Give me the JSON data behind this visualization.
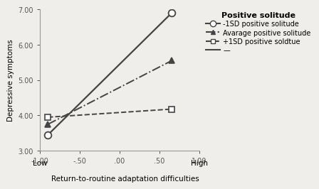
{
  "title": "Positive solitude",
  "xlabel": "Return-to-routine adaptation difficulties",
  "ylabel": "Depressive symptoms",
  "xlim": [
    -1.0,
    1.0
  ],
  "ylim": [
    3.0,
    7.0
  ],
  "xticks": [
    -1.0,
    -0.5,
    0.0,
    0.5,
    1.0
  ],
  "xtick_labels": [
    "-1.00",
    "-.50",
    ".00",
    ".50",
    "1.00"
  ],
  "yticks": [
    3.0,
    4.0,
    5.0,
    6.0,
    7.0
  ],
  "ytick_labels": [
    "3.00",
    "4.00",
    "5.00",
    "6.00",
    "7.00"
  ],
  "x_low_label": "Low",
  "x_high_label": "High",
  "line1": {
    "label": "-1SD positive solitude",
    "x": [
      -0.9,
      0.65
    ],
    "y": [
      3.45,
      6.9
    ],
    "marker": "o",
    "linestyle": "-",
    "color": "#444444"
  },
  "line2": {
    "label": "Avarage positive solitude",
    "x": [
      -0.9,
      0.65
    ],
    "y": [
      3.75,
      5.55
    ],
    "marker": "^",
    "linestyle": "-.",
    "color": "#444444"
  },
  "line3": {
    "label": "+1SD positive soldtue",
    "x": [
      -0.9,
      0.65
    ],
    "y": [
      3.95,
      4.18
    ],
    "marker": "s",
    "linestyle": "--",
    "color": "#444444"
  },
  "background_color": "#f0eeea",
  "legend_title_fontsize": 8,
  "legend_fontsize": 7,
  "axis_label_fontsize": 7.5,
  "tick_fontsize": 7
}
